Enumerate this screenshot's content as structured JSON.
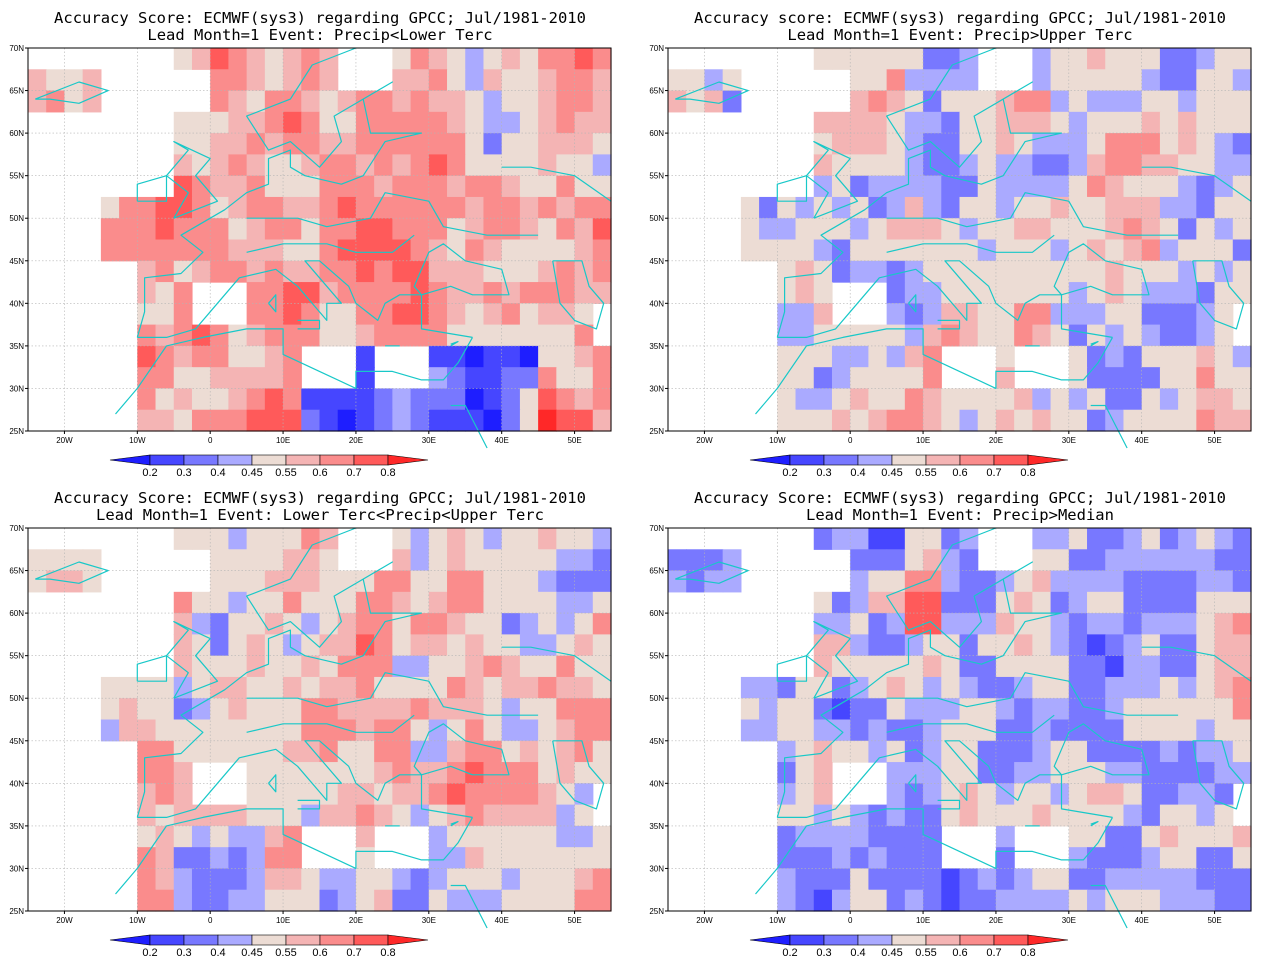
{
  "colors": {
    "levels": [
      "#1e1eff",
      "#4646ff",
      "#7878ff",
      "#aaaaff",
      "#ecdcd4",
      "#f4b4b4",
      "#fa8c8c",
      "#ff5a5a",
      "#ff2828"
    ],
    "coast": "#18c8c8",
    "grid": "#b4b4b4"
  },
  "colorbar": {
    "boundaries": [
      "0.2",
      "0.3",
      "0.4",
      "0.45",
      "0.55",
      "0.6",
      "0.7",
      "0.8"
    ]
  },
  "axes": {
    "xticks": [
      "20W",
      "10W",
      "0",
      "10E",
      "20E",
      "30E",
      "40E",
      "50E"
    ],
    "yticks": [
      "70N",
      "65N",
      "60N",
      "55N",
      "50N",
      "45N",
      "40N",
      "35N",
      "30N",
      "25N"
    ]
  },
  "chart_data": [
    {
      "type": "heatmap",
      "title": "Accuracy Score: ECMWF(sys3) regarding GPCC; Jul/1981-2010",
      "subtitle": "Lead Month=1 Event: Precip<Lower Terc",
      "xlim": [
        -25,
        55
      ],
      "ylim": [
        25,
        70
      ],
      "legend": "bottom",
      "seed": 11,
      "bias": 0.6
    },
    {
      "type": "heatmap",
      "title": "Accuracy score: ECMWF(sys3) regarding GPCC; Jul/1981-2010",
      "subtitle": "Lead Month=1 Event: Precip>Upper Terc",
      "xlim": [
        -25,
        55
      ],
      "ylim": [
        25,
        70
      ],
      "legend": "bottom",
      "seed": 23,
      "bias": 0.5
    },
    {
      "type": "heatmap",
      "title": "Accuracy Score: ECMWF(sys3) regarding GPCC; Jul/1981-2010",
      "subtitle": "Lead Month=1 Event: Lower Terc<Precip<Upper Terc",
      "xlim": [
        -25,
        55
      ],
      "ylim": [
        25,
        70
      ],
      "legend": "bottom",
      "seed": 37,
      "bias": 0.53
    },
    {
      "type": "heatmap",
      "title": "Accuracy Score: ECMWF(sys3) regarding GPCC; Jul/1981-2010",
      "subtitle": "Lead Month=1 Event: Precip>Median",
      "xlim": [
        -25,
        55
      ],
      "ylim": [
        25,
        70
      ],
      "legend": "bottom",
      "seed": 53,
      "bias": 0.44
    }
  ]
}
